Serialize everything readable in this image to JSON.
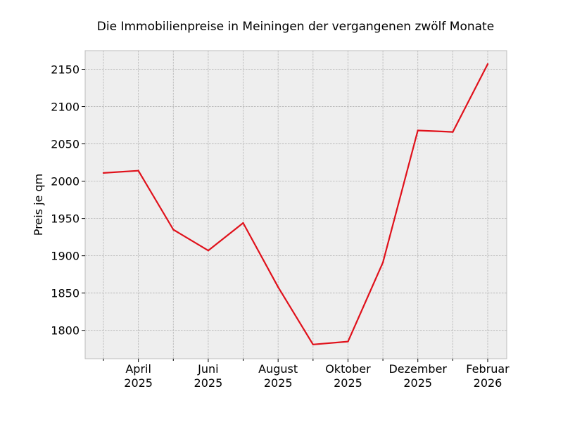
{
  "chart_data": {
    "type": "line",
    "title": "Die Immobilienpreise in Meiningen der vergangenen zwölf Monate",
    "xlabel": "",
    "ylabel": "Preis je qm",
    "x": [
      "2025-03",
      "2025-04",
      "2025-05",
      "2025-06",
      "2025-07",
      "2025-08",
      "2025-09",
      "2025-10",
      "2025-11",
      "2025-12",
      "2026-01",
      "2026-02"
    ],
    "series": [
      {
        "values": [
          2011,
          2014,
          1935,
          1907,
          1944,
          1858,
          1781,
          1785,
          1891,
          2068,
          2066,
          2157
        ],
        "color": "#e0111b"
      }
    ],
    "ylim": [
      1762,
      2175
    ],
    "yticks": [
      1800,
      1850,
      1900,
      1950,
      2000,
      2050,
      2100,
      2150
    ],
    "xticks": [
      {
        "x": "2025-04",
        "label": [
          "April",
          "2025"
        ]
      },
      {
        "x": "2025-06",
        "label": [
          "Juni",
          "2025"
        ]
      },
      {
        "x": "2025-08",
        "label": [
          "August",
          "2025"
        ]
      },
      {
        "x": "2025-10",
        "label": [
          "Oktober",
          "2025"
        ]
      },
      {
        "x": "2025-12",
        "label": [
          "Dezember",
          "2025"
        ]
      },
      {
        "x": "2026-02",
        "label": [
          "Februar",
          "2026"
        ]
      }
    ],
    "minor_xticks": [
      "2025-03",
      "2025-05",
      "2025-07",
      "2025-09",
      "2025-11",
      "2026-01"
    ],
    "grid": true,
    "style": {
      "plot_background": "#eeeeee",
      "grid_color": "#b3b3b3",
      "spine_color": "#bcbcbc"
    }
  }
}
